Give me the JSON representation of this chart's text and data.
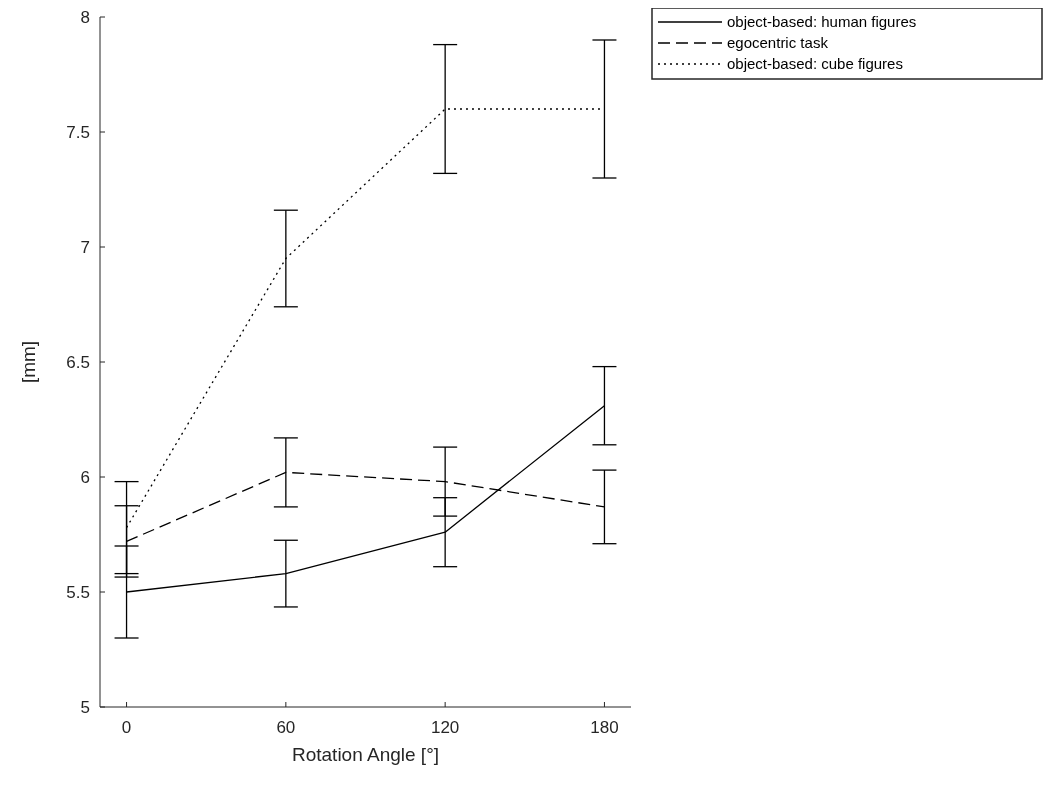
{
  "chart_data": {
    "type": "line",
    "xlabel": "Rotation Angle [°]",
    "ylabel": "[mm]",
    "x": [
      0,
      60,
      120,
      180
    ],
    "xlim": [
      -10,
      190
    ],
    "xticks": [
      0,
      60,
      120,
      180
    ],
    "ylim": [
      5,
      8
    ],
    "yticks": [
      5,
      5.5,
      6,
      6.5,
      7,
      7.5,
      8
    ],
    "legend": "top right",
    "series": [
      {
        "name": "object-based: human figures",
        "color": "#000000",
        "line_style": "solid",
        "values": [
          5.5,
          5.58,
          5.76,
          6.31
        ],
        "errors": [
          0.2,
          0.145,
          0.15,
          0.17
        ]
      },
      {
        "name": "egocentric task",
        "color": "#000000",
        "line_style": "dashed",
        "values": [
          5.72,
          6.02,
          5.98,
          5.87
        ],
        "errors": [
          0.155,
          0.15,
          0.15,
          0.16
        ]
      },
      {
        "name": "object-based: cube figures",
        "color": "#000000",
        "line_style": "dotted",
        "values": [
          5.78,
          6.95,
          7.6,
          7.6
        ],
        "errors": [
          0.2,
          0.21,
          0.28,
          0.3
        ]
      }
    ]
  }
}
